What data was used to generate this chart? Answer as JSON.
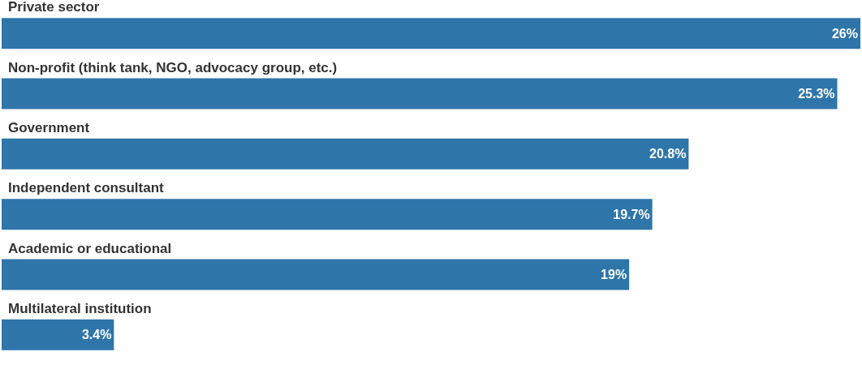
{
  "chart_data": {
    "type": "bar",
    "orientation": "horizontal",
    "categories": [
      "Private sector",
      "Non-profit (think tank, NGO, advocacy group, etc.)",
      "Government",
      "Independent consultant",
      "Academic or educational",
      "Multilateral institution"
    ],
    "values": [
      26,
      25.3,
      20.8,
      19.7,
      19,
      3.4
    ],
    "value_labels": [
      "26%",
      "25.3%",
      "20.8%",
      "19.7%",
      "19%",
      "3.4%"
    ],
    "color": "#2e75aa"
  }
}
